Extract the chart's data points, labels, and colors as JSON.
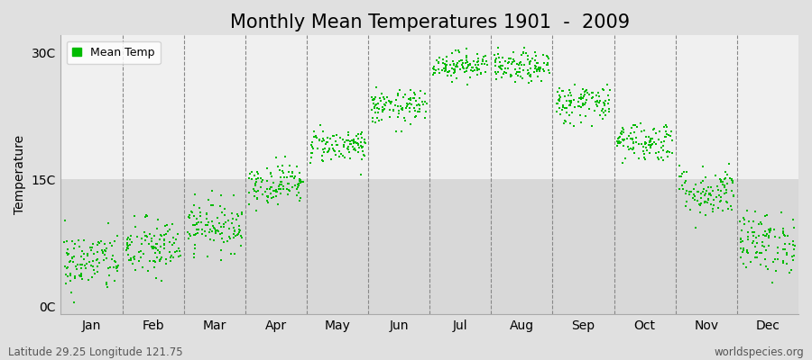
{
  "title": "Monthly Mean Temperatures 1901  -  2009",
  "ylabel": "Temperature",
  "bottom_left": "Latitude 29.25 Longitude 121.75",
  "bottom_right": "worldspecies.org",
  "ytick_labels": [
    "0C",
    "15C",
    "30C"
  ],
  "ytick_values": [
    0,
    15,
    30
  ],
  "ylim": [
    -1,
    32
  ],
  "xlim": [
    0,
    12
  ],
  "months": [
    "Jan",
    "Feb",
    "Mar",
    "Apr",
    "May",
    "Jun",
    "Jul",
    "Aug",
    "Sep",
    "Oct",
    "Nov",
    "Dec"
  ],
  "mean_temps": [
    5.2,
    6.8,
    9.5,
    14.5,
    19.0,
    23.5,
    28.5,
    28.2,
    24.0,
    19.5,
    13.5,
    7.5
  ],
  "std_temps": [
    1.8,
    1.8,
    1.5,
    1.2,
    1.0,
    1.0,
    0.8,
    0.9,
    1.2,
    1.2,
    1.5,
    1.8
  ],
  "n_years": 109,
  "dot_color": "#00bb00",
  "dot_size": 4,
  "bg_color_upper": "#f0f0f0",
  "bg_color_lower": "#d8d8d8",
  "bg_color_fig": "#e0e0e0",
  "legend_label": "Mean Temp",
  "title_fontsize": 15,
  "label_fontsize": 10,
  "tick_fontsize": 10,
  "vline_color": "#888888",
  "vline_positions": [
    1,
    2,
    3,
    4,
    5,
    6,
    7,
    8,
    9,
    10,
    11
  ]
}
